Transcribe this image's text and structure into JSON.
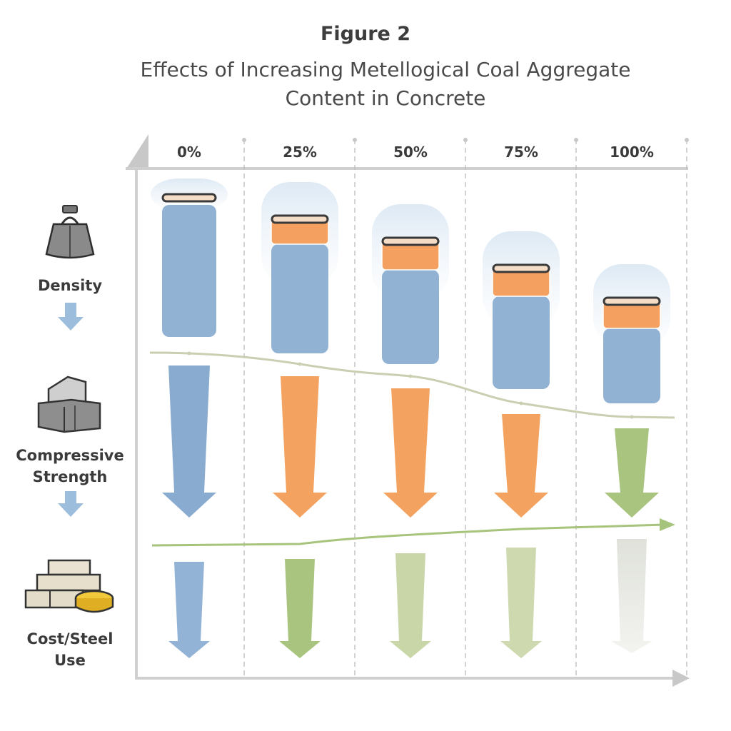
{
  "figure_label": "Figure 2",
  "title": "Effects of Increasing Metellogical Coal Aggregate Content in Concrete",
  "columns": [
    {
      "label": "0%",
      "cap_color": "#8fb0d3",
      "strength_arrow_color": "#8aabd0",
      "cost_arrow_color": "#93b3d6"
    },
    {
      "label": "25%",
      "cap_color": "#f4a060",
      "strength_arrow_color": "#f4a25f",
      "cost_arrow_color": "#a8c47e"
    },
    {
      "label": "50%",
      "cap_color": "#f4a060",
      "strength_arrow_color": "#f4a25f",
      "cost_arrow_color": "#c9d6a8"
    },
    {
      "label": "75%",
      "cap_color": "#f4a060",
      "strength_arrow_color": "#f4a25f",
      "cost_arrow_color": "#cfd9b0"
    },
    {
      "label": "100%",
      "cap_color": "#f4a060",
      "strength_arrow_color": "#a9c47f",
      "cost_arrow_color": "#e2e4dc"
    }
  ],
  "rows": [
    {
      "label": "Density",
      "icon": "weight-icon"
    },
    {
      "label": "Compressive Strength",
      "icon": "concrete-blocks-icon"
    },
    {
      "label": "Cost/Steel Use",
      "icon": "bricks-and-coins-icon"
    }
  ],
  "colors": {
    "cylinder_body": "#92b2d4",
    "density_curve": "#c9d0b2",
    "cost_curve": "#a6c47c",
    "axis": "#c8c8c8"
  }
}
